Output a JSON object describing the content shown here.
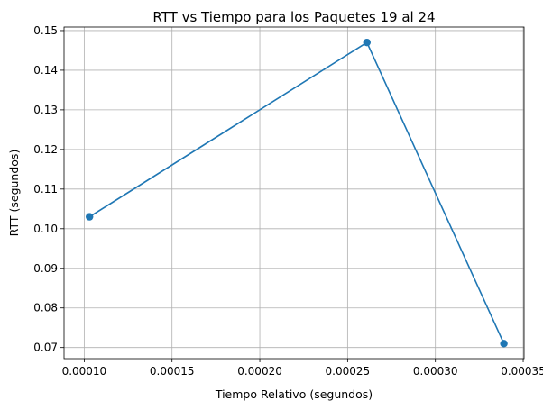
{
  "chart_data": {
    "type": "line",
    "title": "RTT vs Tiempo para los Paquetes 19 al 24",
    "xlabel": "Tiempo Relativo (segundos)",
    "ylabel": "RTT (segundos)",
    "xlim": [
      8.85e-05,
      0.0003505
    ],
    "ylim": [
      0.0672,
      0.1509
    ],
    "xticks": [
      0.0001,
      0.00015,
      0.0002,
      0.00025,
      0.0003,
      0.00035
    ],
    "xtick_labels": [
      "0.00010",
      "0.00015",
      "0.00020",
      "0.00025",
      "0.00030",
      "0.00035"
    ],
    "yticks": [
      0.07,
      0.08,
      0.09,
      0.1,
      0.11,
      0.12,
      0.13,
      0.14,
      0.15
    ],
    "ytick_labels": [
      "0.07",
      "0.08",
      "0.09",
      "0.10",
      "0.11",
      "0.12",
      "0.13",
      "0.14",
      "0.15"
    ],
    "grid": true,
    "series": [
      {
        "x": [
          0.000103,
          0.000261,
          0.000339
        ],
        "y": [
          0.103,
          0.147,
          0.071
        ],
        "color": "#1f77b4",
        "marker": "circle"
      }
    ]
  }
}
